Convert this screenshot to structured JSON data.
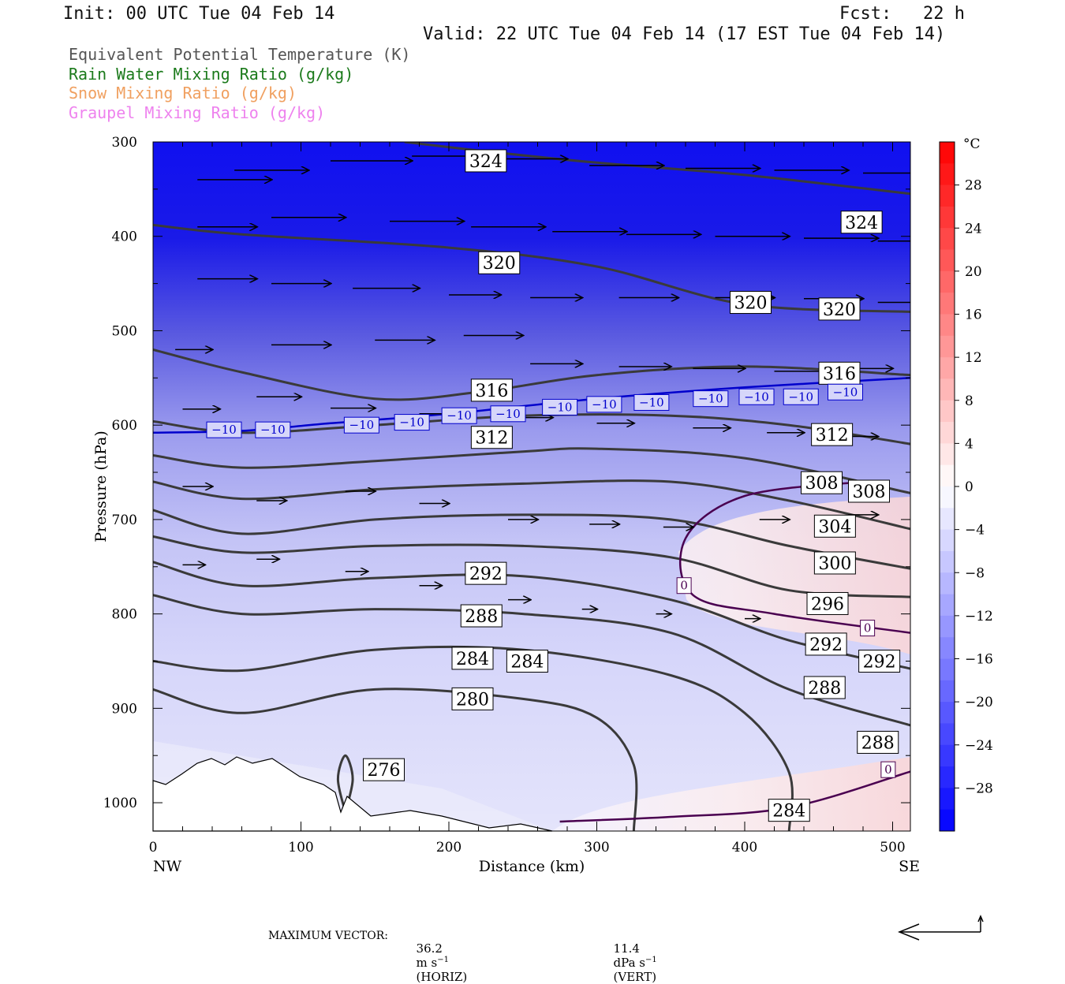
{
  "header": {
    "init": "Init: 00 UTC Tue 04 Feb 14",
    "fcst": "Fcst:   22 h",
    "valid": "Valid: 22 UTC Tue 04 Feb 14 (17 EST Tue 04 Feb 14)"
  },
  "fields": [
    {
      "label": "Equivalent Potential Temperature (K)",
      "color": "#555555"
    },
    {
      "label": "Rain Water Mixing Ratio (g/kg)",
      "color": "#1b7a1b"
    },
    {
      "label": "Snow Mixing Ratio (g/kg)",
      "color": "#f0a060"
    },
    {
      "label": "Graupel Mixing Ratio (g/kg)",
      "color": "#ee82ee"
    }
  ],
  "chart_data": {
    "type": "heatmap",
    "xlabel": "Distance (km)",
    "ylabel": "Pressure (hPa)",
    "xlim": [
      0,
      512
    ],
    "ylim": [
      1030,
      300
    ],
    "x_ticks": [
      "0",
      "100",
      "200",
      "300",
      "400",
      "500"
    ],
    "x_tick_values": [
      0,
      100,
      200,
      300,
      400,
      500
    ],
    "y_ticks": [
      "300",
      "400",
      "500",
      "600",
      "700",
      "800",
      "900",
      "1000"
    ],
    "y_tick_values": [
      300,
      400,
      500,
      600,
      700,
      800,
      900,
      1000
    ],
    "x_end_labels": {
      "left": "NW",
      "right": "SE"
    },
    "colorbar": {
      "unit": "°C",
      "ticks": [
        "28",
        "24",
        "20",
        "16",
        "12",
        "8",
        "4",
        "0",
        "−4",
        "−8",
        "−12",
        "−16",
        "−20",
        "−24",
        "−28"
      ],
      "tick_values": [
        28,
        24,
        20,
        16,
        12,
        8,
        4,
        0,
        -4,
        -8,
        -12,
        -16,
        -20,
        -24,
        -28
      ],
      "range": [
        -32,
        32
      ],
      "cold_color": "#0000ff",
      "warm_color": "#ff0000"
    },
    "theta_e_contours": [
      {
        "value": 324,
        "label": "324",
        "points": [
          [
            170,
            300
          ],
          [
            225,
            310
          ],
          [
            300,
            322
          ],
          [
            400,
            335
          ],
          [
            512,
            355
          ]
        ],
        "label_positions": [
          [
            225,
            320
          ],
          [
            479,
            385
          ]
        ]
      },
      {
        "value": 320,
        "label": "320",
        "points": [
          [
            0,
            388
          ],
          [
            60,
            398
          ],
          [
            200,
            412
          ],
          [
            300,
            432
          ],
          [
            400,
            472
          ],
          [
            512,
            480
          ]
        ],
        "label_positions": [
          [
            234,
            428
          ],
          [
            404,
            470
          ],
          [
            464,
            477
          ]
        ]
      },
      {
        "value": 316,
        "label": "316",
        "points": [
          [
            0,
            520
          ],
          [
            60,
            544
          ],
          [
            150,
            572
          ],
          [
            220,
            565
          ],
          [
            300,
            547
          ],
          [
            400,
            538
          ],
          [
            512,
            547
          ]
        ],
        "label_positions": [
          [
            229,
            563
          ],
          [
            464,
            545
          ]
        ]
      },
      {
        "value": 312,
        "label": "312",
        "points": [
          [
            0,
            596
          ],
          [
            60,
            608
          ],
          [
            150,
            600
          ],
          [
            250,
            590
          ],
          [
            350,
            590
          ],
          [
            430,
            600
          ],
          [
            512,
            620
          ]
        ],
        "label_positions": [
          [
            229,
            613
          ],
          [
            459,
            610
          ]
        ]
      },
      {
        "value": 308,
        "label": "308",
        "points": [
          [
            0,
            632
          ],
          [
            60,
            645
          ],
          [
            150,
            638
          ],
          [
            250,
            628
          ],
          [
            300,
            625
          ],
          [
            400,
            635
          ],
          [
            512,
            672
          ]
        ],
        "label_positions": [
          [
            452,
            661
          ],
          [
            484,
            670
          ]
        ]
      },
      {
        "value": 304,
        "label": "304",
        "points": [
          [
            0,
            660
          ],
          [
            60,
            678
          ],
          [
            150,
            668
          ],
          [
            250,
            662
          ],
          [
            350,
            660
          ],
          [
            430,
            680
          ],
          [
            512,
            710
          ]
        ],
        "label_positions": [
          [
            461,
            707
          ]
        ]
      },
      {
        "value": 300,
        "label": "300",
        "points": [
          [
            0,
            690
          ],
          [
            60,
            715
          ],
          [
            150,
            700
          ],
          [
            250,
            695
          ],
          [
            350,
            700
          ],
          [
            430,
            728
          ],
          [
            512,
            752
          ]
        ],
        "label_positions": [
          [
            461,
            746
          ]
        ]
      },
      {
        "value": 296,
        "label": "296",
        "points": [
          [
            0,
            718
          ],
          [
            60,
            735
          ],
          [
            150,
            728
          ],
          [
            250,
            728
          ],
          [
            350,
            740
          ],
          [
            430,
            775
          ],
          [
            512,
            782
          ]
        ],
        "label_positions": [
          [
            456,
            789
          ]
        ]
      },
      {
        "value": 292,
        "label": "292",
        "points": [
          [
            0,
            745
          ],
          [
            60,
            770
          ],
          [
            150,
            762
          ],
          [
            250,
            760
          ],
          [
            350,
            785
          ],
          [
            430,
            828
          ],
          [
            512,
            858
          ]
        ],
        "label_positions": [
          [
            225,
            757
          ],
          [
            455,
            832
          ],
          [
            491,
            850
          ]
        ]
      },
      {
        "value": 288,
        "label": "288",
        "points": [
          [
            0,
            780
          ],
          [
            60,
            800
          ],
          [
            150,
            795
          ],
          [
            250,
            800
          ],
          [
            350,
            820
          ],
          [
            430,
            880
          ],
          [
            512,
            918
          ]
        ],
        "label_positions": [
          [
            222,
            802
          ],
          [
            454,
            878
          ],
          [
            490,
            936
          ]
        ]
      },
      {
        "value": 284,
        "label": "284",
        "points": [
          [
            0,
            850
          ],
          [
            60,
            860
          ],
          [
            150,
            838
          ],
          [
            250,
            838
          ],
          [
            350,
            865
          ],
          [
            400,
            905
          ],
          [
            430,
            968
          ],
          [
            430,
            1030
          ]
        ],
        "label_positions": [
          [
            216,
            847
          ],
          [
            253,
            850
          ],
          [
            430,
            1008
          ]
        ]
      },
      {
        "value": 280,
        "label": "280",
        "points": [
          [
            0,
            880
          ],
          [
            60,
            905
          ],
          [
            150,
            880
          ],
          [
            250,
            890
          ],
          [
            300,
            910
          ],
          [
            325,
            960
          ],
          [
            325,
            1030
          ]
        ],
        "label_positions": [
          [
            216,
            890
          ]
        ]
      },
      {
        "value": 276,
        "label": "276",
        "points": [
          [
            130,
            1010
          ],
          [
            125,
            975
          ],
          [
            130,
            950
          ],
          [
            135,
            975
          ],
          [
            130,
            1010
          ]
        ],
        "label_positions": [
          [
            156,
            965
          ]
        ]
      }
    ],
    "isotherms": [
      {
        "value": -10,
        "label": "−10",
        "color": "#0000cc",
        "points": [
          [
            0,
            608
          ],
          [
            60,
            606
          ],
          [
            120,
            598
          ],
          [
            200,
            588
          ],
          [
            300,
            572
          ],
          [
            400,
            560
          ],
          [
            512,
            550
          ]
        ],
        "label_positions": [
          [
            48,
            605
          ],
          [
            81,
            605
          ],
          [
            141,
            600
          ],
          [
            175,
            597
          ],
          [
            207,
            590
          ],
          [
            240,
            588
          ],
          [
            275,
            581
          ],
          [
            305,
            578
          ],
          [
            337,
            576
          ],
          [
            377,
            572
          ],
          [
            408,
            570
          ],
          [
            438,
            570
          ],
          [
            468,
            565
          ]
        ]
      },
      {
        "value": 0,
        "label": "0",
        "color": "#4a0050",
        "points": [
          [
            480,
            660
          ],
          [
            400,
            675
          ],
          [
            360,
            720
          ],
          [
            365,
            780
          ],
          [
            420,
            800
          ],
          [
            512,
            820
          ]
        ],
        "label_positions": [
          [
            359,
            770
          ],
          [
            483,
            815
          ],
          [
            497,
            965
          ]
        ]
      },
      {
        "value": 0,
        "label": "0",
        "color": "#4a0050",
        "points": [
          [
            275,
            1020
          ],
          [
            350,
            1015
          ],
          [
            430,
            1005
          ],
          [
            512,
            967
          ]
        ],
        "label_positions": []
      }
    ],
    "wind_vectors": [
      [
        30,
        340,
        50,
        0
      ],
      [
        55,
        330,
        50,
        0
      ],
      [
        120,
        320,
        55,
        0
      ],
      [
        175,
        315,
        50,
        0
      ],
      [
        230,
        318,
        50,
        0
      ],
      [
        295,
        325,
        50,
        0
      ],
      [
        360,
        328,
        50,
        0
      ],
      [
        420,
        330,
        50,
        0
      ],
      [
        480,
        333,
        50,
        0
      ],
      [
        512,
        336,
        30,
        0
      ],
      [
        30,
        390,
        40,
        0
      ],
      [
        80,
        380,
        50,
        0
      ],
      [
        160,
        384,
        50,
        0
      ],
      [
        215,
        390,
        50,
        0
      ],
      [
        270,
        395,
        50,
        0
      ],
      [
        320,
        398,
        50,
        0
      ],
      [
        380,
        400,
        50,
        0
      ],
      [
        440,
        402,
        50,
        0
      ],
      [
        490,
        405,
        40,
        0
      ],
      [
        30,
        445,
        40,
        0
      ],
      [
        80,
        450,
        40,
        0
      ],
      [
        135,
        455,
        45,
        0
      ],
      [
        200,
        462,
        35,
        0
      ],
      [
        255,
        465,
        35,
        0
      ],
      [
        315,
        465,
        40,
        0
      ],
      [
        380,
        465,
        40,
        0
      ],
      [
        440,
        466,
        40,
        0
      ],
      [
        490,
        470,
        30,
        0
      ],
      [
        15,
        520,
        25,
        0
      ],
      [
        80,
        515,
        40,
        0
      ],
      [
        150,
        510,
        40,
        0
      ],
      [
        210,
        505,
        40,
        0
      ],
      [
        255,
        535,
        35,
        0
      ],
      [
        315,
        538,
        35,
        0
      ],
      [
        365,
        540,
        35,
        0
      ],
      [
        420,
        543,
        35,
        0
      ],
      [
        475,
        540,
        25,
        0
      ],
      [
        20,
        583,
        25,
        0
      ],
      [
        70,
        570,
        30,
        0
      ],
      [
        120,
        582,
        30,
        0
      ],
      [
        180,
        588,
        25,
        0
      ],
      [
        240,
        592,
        30,
        0
      ],
      [
        300,
        598,
        25,
        0
      ],
      [
        365,
        603,
        25,
        0
      ],
      [
        415,
        608,
        25,
        0
      ],
      [
        470,
        612,
        20,
        0
      ],
      [
        20,
        665,
        20,
        0
      ],
      [
        70,
        680,
        20,
        0
      ],
      [
        130,
        670,
        20,
        0
      ],
      [
        180,
        683,
        20,
        0
      ],
      [
        240,
        700,
        20,
        0
      ],
      [
        295,
        705,
        20,
        0
      ],
      [
        345,
        708,
        20,
        0
      ],
      [
        410,
        700,
        20,
        0
      ],
      [
        470,
        695,
        20,
        0
      ],
      [
        20,
        748,
        15,
        0
      ],
      [
        70,
        742,
        15,
        0
      ],
      [
        130,
        755,
        15,
        0
      ],
      [
        180,
        770,
        15,
        0
      ],
      [
        240,
        785,
        15,
        0
      ],
      [
        290,
        795,
        10,
        0
      ],
      [
        340,
        800,
        10,
        0
      ],
      [
        400,
        805,
        10,
        0
      ]
    ]
  },
  "footer": {
    "max_vector_label": "MAXIMUM VECTOR:",
    "horiz_value": "36.2",
    "horiz_unit": "m s",
    "horiz_exp": "−1",
    "horiz_tag": "(HORIZ)",
    "vert_value": "11.4",
    "vert_unit": "dPa s",
    "vert_exp": "−1",
    "vert_tag": "(VERT)"
  }
}
